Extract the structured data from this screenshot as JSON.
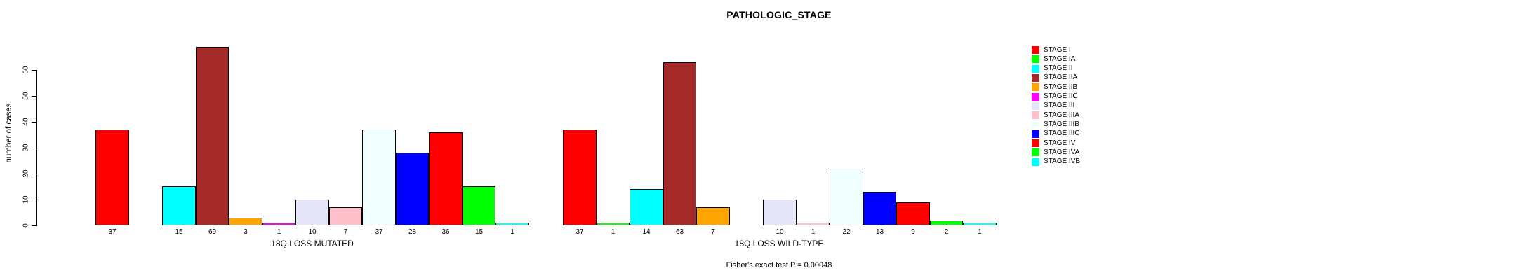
{
  "title": "PATHOLOGIC_STAGE",
  "footer_note": "Fisher's exact test P = 0.00048",
  "y_axis": {
    "label": "number of cases",
    "ticks": [
      0,
      10,
      20,
      30,
      40,
      50,
      60
    ]
  },
  "legend": {
    "position": "right",
    "entries": [
      {
        "label": "STAGE I",
        "color": "#FF0000"
      },
      {
        "label": "STAGE IA",
        "color": "#00FF00"
      },
      {
        "label": "STAGE II",
        "color": "#00FFFF"
      },
      {
        "label": "STAGE IIA",
        "color": "#A52A2A"
      },
      {
        "label": "STAGE IIB",
        "color": "#FFA500"
      },
      {
        "label": "STAGE IIC",
        "color": "#FF00FF"
      },
      {
        "label": "STAGE III",
        "color": "#E6E6FA"
      },
      {
        "label": "STAGE IIIA",
        "color": "#FFC0CB"
      },
      {
        "label": "STAGE IIIB",
        "color": "#F0FFFF"
      },
      {
        "label": "STAGE IIIC",
        "color": "#0000FF"
      },
      {
        "label": "STAGE IV",
        "color": "#FF0000"
      },
      {
        "label": "STAGE IVA",
        "color": "#00FF00"
      },
      {
        "label": "STAGE IVB",
        "color": "#00FFFF"
      }
    ]
  },
  "chart_data": [
    {
      "type": "bar",
      "title": "",
      "xlabel": "18Q LOSS MUTATED",
      "ylabel": "number of cases",
      "ylim": [
        0,
        70
      ],
      "grid": false,
      "categories": [
        "STAGE I",
        "STAGE IA",
        "STAGE II",
        "STAGE IIA",
        "STAGE IIB",
        "STAGE IIC",
        "STAGE III",
        "STAGE IIIA",
        "STAGE IIIB",
        "STAGE IIIC",
        "STAGE IV",
        "STAGE IVA",
        "STAGE IVB"
      ],
      "values": [
        37,
        0,
        15,
        69,
        3,
        1,
        10,
        7,
        37,
        28,
        36,
        15,
        1
      ],
      "zero_bars_hidden": true
    },
    {
      "type": "bar",
      "title": "",
      "xlabel": "18Q LOSS WILD-TYPE",
      "ylabel": "number of cases",
      "ylim": [
        0,
        70
      ],
      "grid": false,
      "categories": [
        "STAGE I",
        "STAGE IA",
        "STAGE II",
        "STAGE IIA",
        "STAGE IIB",
        "STAGE IIC",
        "STAGE III",
        "STAGE IIIA",
        "STAGE IIIB",
        "STAGE IIIC",
        "STAGE IV",
        "STAGE IVA",
        "STAGE IVB"
      ],
      "values": [
        37,
        1,
        14,
        63,
        7,
        0,
        10,
        1,
        22,
        13,
        9,
        2,
        1
      ],
      "zero_bars_hidden": true
    }
  ]
}
